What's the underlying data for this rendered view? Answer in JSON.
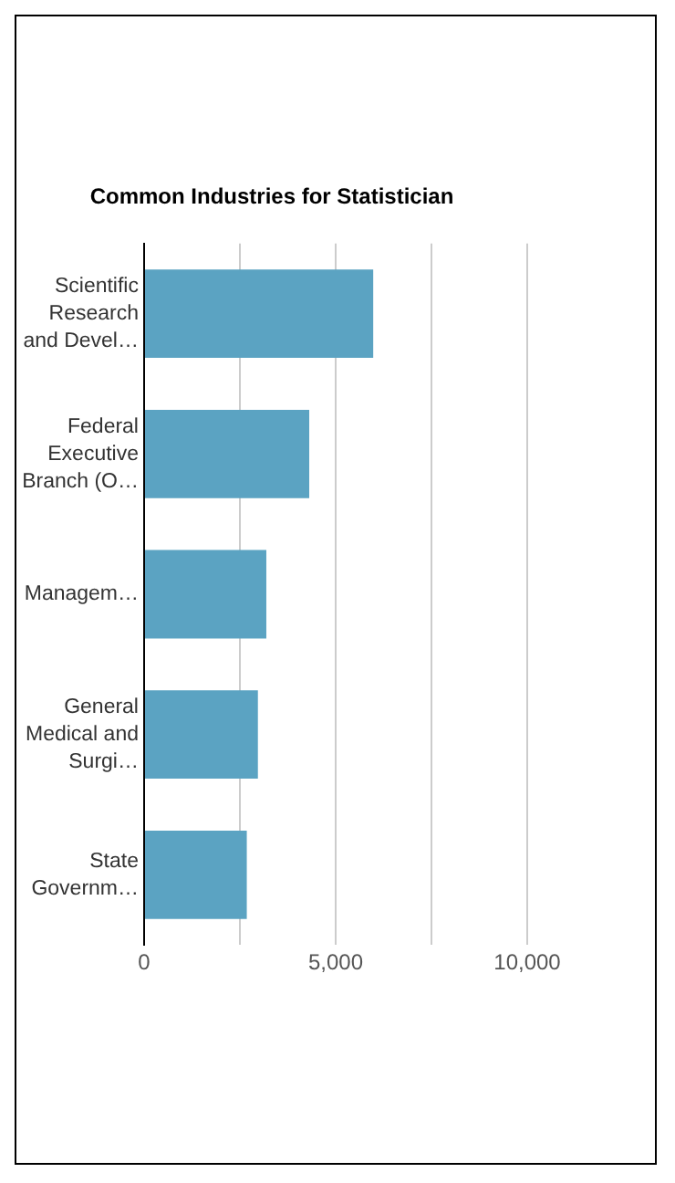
{
  "chart_data": {
    "type": "bar",
    "orientation": "horizontal",
    "title": "Common Industries for Statistician",
    "categories": [
      "Scientific Research and Devel…",
      "Federal Executive Branch (O…",
      "Managem…",
      "General Medical and Surgi…",
      "State Governm…"
    ],
    "values": [
      5980,
      4310,
      3190,
      2970,
      2680
    ],
    "color": "#5ba3c2",
    "xlim": [
      0,
      10000
    ],
    "xticks": [
      0,
      {
        "value": 2500,
        "label": null
      },
      {
        "value": 5000,
        "label": "5,000"
      },
      {
        "value": 7500,
        "label": null
      },
      {
        "value": 10000,
        "label": "10,000"
      }
    ],
    "grid": "x",
    "legend": false
  }
}
